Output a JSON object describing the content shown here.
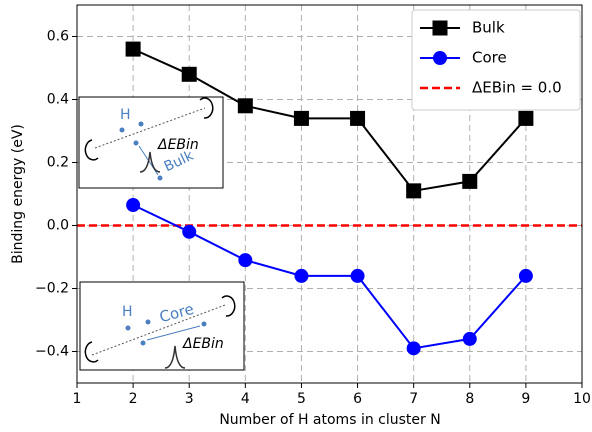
{
  "chart_data": {
    "type": "line",
    "x": [
      2,
      3,
      4,
      5,
      6,
      7,
      8,
      9
    ],
    "series": [
      {
        "name": "Bulk",
        "color": "#000000",
        "marker": "square",
        "values": [
          0.56,
          0.48,
          0.38,
          0.34,
          0.34,
          0.11,
          0.14,
          0.34
        ]
      },
      {
        "name": "Core",
        "color": "#0000ff",
        "marker": "circle",
        "values": [
          0.065,
          -0.02,
          -0.11,
          -0.16,
          -0.16,
          -0.39,
          -0.36,
          -0.16
        ]
      }
    ],
    "reference_line": {
      "name": "ΔEBin = 0.0",
      "value": 0,
      "color": "#ff0000"
    },
    "xlabel": "Number of H atoms in cluster N",
    "ylabel": "Binding energy (eV)",
    "xlim": [
      1,
      10
    ],
    "xticks": [
      1,
      2,
      3,
      4,
      5,
      6,
      7,
      8,
      9,
      10
    ],
    "ylim": [
      -0.5,
      0.7
    ],
    "yticks": [
      {
        "value": -0.4,
        "label": "−0.4"
      },
      {
        "value": -0.2,
        "label": "−0.2"
      },
      {
        "value": 0,
        "label": "0.0"
      },
      0.2,
      0.4,
      0.6
    ],
    "grid": true,
    "legend": "upper right",
    "insets": [
      {
        "labels": [
          "H",
          "ΔEBin",
          "Bulk"
        ]
      },
      {
        "labels": [
          "H",
          "Core",
          "ΔEBin"
        ]
      }
    ]
  }
}
